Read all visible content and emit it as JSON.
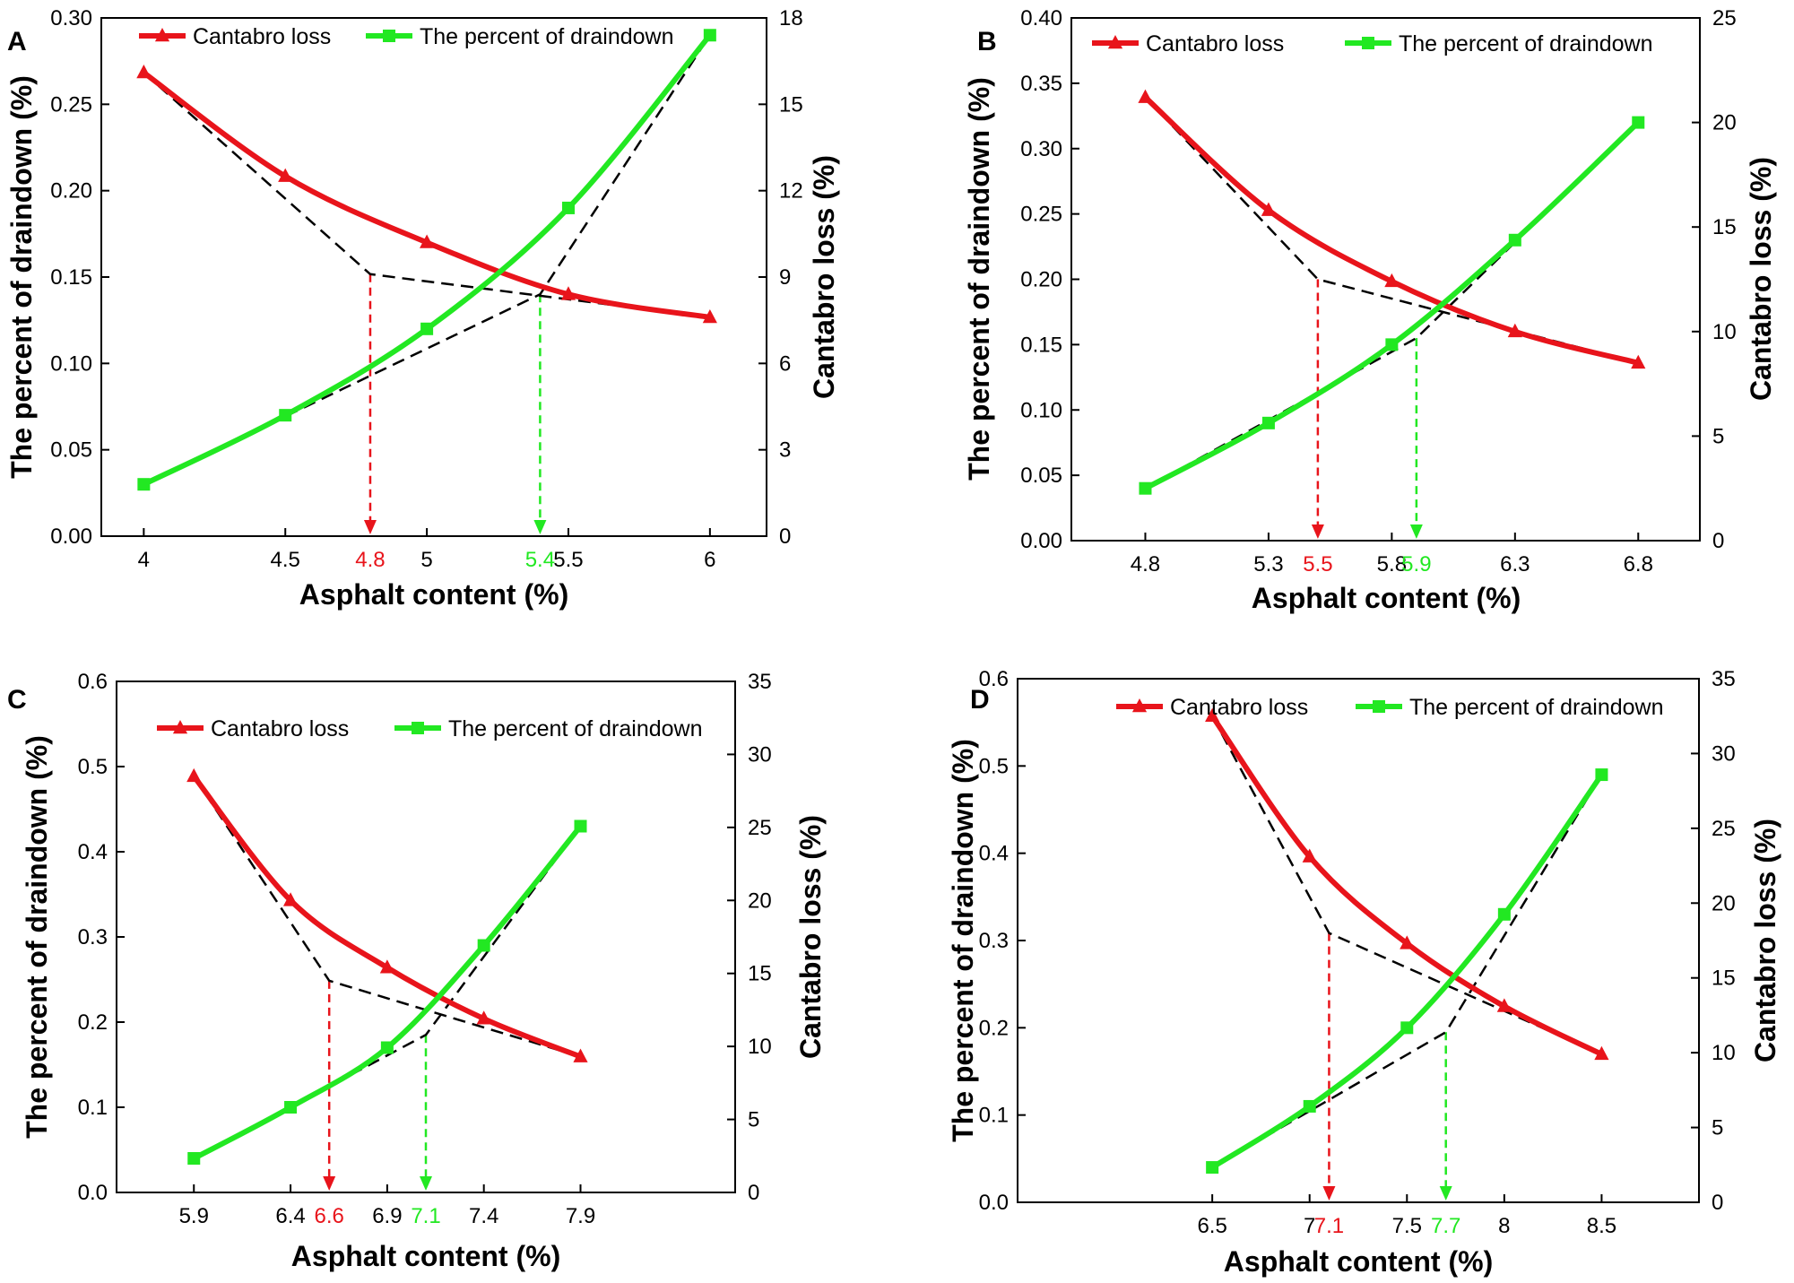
{
  "colors": {
    "cantabro": "#e8141b",
    "draindown": "#22e822",
    "fit": "#000000",
    "axis": "#000000"
  },
  "chart_data": [
    {
      "type": "line",
      "panel": "A",
      "xlabel": "Asphalt content (%)",
      "ylabel_left": "The percent of draindown (%)",
      "ylabel_right": "Cantabro loss (%)",
      "xlim": [
        3.85,
        6.2
      ],
      "ylim_left": [
        0,
        0.3
      ],
      "ylim_right": [
        0,
        18
      ],
      "xticks": [
        "4",
        "4.5",
        "5",
        "5.5",
        "6"
      ],
      "yticks_left": [
        "0.00",
        "0.05",
        "0.10",
        "0.15",
        "0.20",
        "0.25",
        "0.30"
      ],
      "yticks_right": [
        "0",
        "3",
        "6",
        "9",
        "12",
        "15",
        "18"
      ],
      "legend": [
        "Cantabro loss",
        "The percent of draindown"
      ],
      "series": [
        {
          "name": "Cantabro loss",
          "axis": "right",
          "x": [
            4,
            4.5,
            5,
            5.5,
            6
          ],
          "values": [
            16.1,
            12.5,
            10.2,
            8.4,
            7.6
          ]
        },
        {
          "name": "The percent of draindown",
          "axis": "left",
          "x": [
            4,
            4.5,
            5,
            5.5,
            6
          ],
          "values": [
            0.03,
            0.07,
            0.12,
            0.19,
            0.29
          ]
        }
      ],
      "fit_lines": [
        {
          "axis": "right",
          "x": [
            4,
            4.8,
            6
          ],
          "values": [
            16.1,
            9.1,
            7.6
          ]
        },
        {
          "axis": "left",
          "x": [
            4,
            5.4,
            6
          ],
          "values": [
            0.03,
            0.14,
            0.29
          ]
        }
      ],
      "optimum": [
        {
          "label": "4.8",
          "x": 4.8,
          "axis": "right",
          "y": 9.1,
          "color": "red"
        },
        {
          "label": "5.4",
          "x": 5.4,
          "axis": "left",
          "y": 0.14,
          "color": "green"
        }
      ]
    },
    {
      "type": "line",
      "panel": "B",
      "xlabel": "Asphalt content (%)",
      "ylabel_left": "The percent of draindown (%)",
      "ylabel_right": "Cantabro loss (%)",
      "xlim": [
        4.5,
        7.05
      ],
      "ylim_left": [
        0,
        0.4
      ],
      "ylim_right": [
        0,
        25
      ],
      "xticks": [
        "4.8",
        "5.3",
        "5.8",
        "6.3",
        "6.8"
      ],
      "yticks_left": [
        "0.00",
        "0.05",
        "0.10",
        "0.15",
        "0.20",
        "0.25",
        "0.30",
        "0.35",
        "0.40"
      ],
      "yticks_right": [
        "0",
        "5",
        "10",
        "15",
        "20",
        "25"
      ],
      "legend": [
        "Cantabro loss",
        "The percent of draindown"
      ],
      "series": [
        {
          "name": "Cantabro loss",
          "axis": "right",
          "x": [
            4.8,
            5.3,
            5.8,
            6.3,
            6.8
          ],
          "values": [
            21.2,
            15.8,
            12.4,
            10.0,
            8.5
          ]
        },
        {
          "name": "The percent of draindown",
          "axis": "left",
          "x": [
            4.8,
            5.3,
            5.8,
            6.3,
            6.8
          ],
          "values": [
            0.04,
            0.09,
            0.15,
            0.23,
            0.32
          ]
        }
      ],
      "fit_lines": [
        {
          "axis": "right",
          "x": [
            4.8,
            5.5,
            6.8
          ],
          "values": [
            21.2,
            12.5,
            8.5
          ]
        },
        {
          "axis": "left",
          "x": [
            4.8,
            5.9,
            6.8
          ],
          "values": [
            0.04,
            0.155,
            0.32
          ]
        }
      ],
      "optimum": [
        {
          "label": "5.5",
          "x": 5.5,
          "axis": "right",
          "y": 12.5,
          "color": "red"
        },
        {
          "label": "5.9",
          "x": 5.9,
          "axis": "left",
          "y": 0.155,
          "color": "green"
        }
      ]
    },
    {
      "type": "line",
      "panel": "C",
      "xlabel": "Asphalt content (%)",
      "ylabel_left": "The percent of draindown (%)",
      "ylabel_right": "Cantabro loss (%)",
      "xlim": [
        5.5,
        8.7
      ],
      "ylim_left": [
        0,
        0.6
      ],
      "ylim_right": [
        0,
        35
      ],
      "xticks": [
        "5.9",
        "6.4",
        "6.9",
        "7.4",
        "7.9"
      ],
      "yticks_left": [
        "0.0",
        "0.1",
        "0.2",
        "0.3",
        "0.4",
        "0.5",
        "0.6"
      ],
      "yticks_right": [
        "0",
        "5",
        "10",
        "15",
        "20",
        "25",
        "30",
        "35"
      ],
      "legend": [
        "Cantabro loss",
        "The percent of draindown"
      ],
      "series": [
        {
          "name": "Cantabro loss",
          "axis": "right",
          "x": [
            5.9,
            6.4,
            6.9,
            7.4,
            7.9
          ],
          "values": [
            28.5,
            20.0,
            15.4,
            11.9,
            9.3
          ]
        },
        {
          "name": "The percent of draindown",
          "axis": "left",
          "x": [
            5.9,
            6.4,
            6.9,
            7.4,
            7.9
          ],
          "values": [
            0.04,
            0.1,
            0.17,
            0.29,
            0.43
          ]
        }
      ],
      "fit_lines": [
        {
          "axis": "right",
          "x": [
            5.9,
            6.6,
            7.9
          ],
          "values": [
            28.5,
            14.5,
            9.3
          ]
        },
        {
          "axis": "left",
          "x": [
            5.9,
            7.1,
            7.9
          ],
          "values": [
            0.04,
            0.185,
            0.43
          ]
        }
      ],
      "optimum": [
        {
          "label": "6.6",
          "x": 6.6,
          "axis": "right",
          "y": 14.5,
          "color": "red"
        },
        {
          "label": "7.1",
          "x": 7.1,
          "axis": "left",
          "y": 0.185,
          "color": "green"
        }
      ]
    },
    {
      "type": "line",
      "panel": "D",
      "xlabel": "Asphalt content (%)",
      "ylabel_left": "The percent of draindown (%)",
      "ylabel_right": "Cantabro loss (%)",
      "xlim": [
        5.5,
        9.0
      ],
      "ylim_left": [
        0,
        0.6
      ],
      "ylim_right": [
        0,
        35
      ],
      "xticks": [
        "6.5",
        "7",
        "7.5",
        "8",
        "8.5"
      ],
      "yticks_left": [
        "0.0",
        "0.1",
        "0.2",
        "0.3",
        "0.4",
        "0.5",
        "0.6"
      ],
      "yticks_right": [
        "0",
        "5",
        "10",
        "15",
        "20",
        "25",
        "30",
        "35"
      ],
      "legend": [
        "Cantabro loss",
        "The percent of draindown"
      ],
      "series": [
        {
          "name": "Cantabro loss",
          "axis": "right",
          "x": [
            6.5,
            7,
            7.5,
            8,
            8.5
          ],
          "values": [
            32.5,
            23.1,
            17.3,
            13.1,
            9.9
          ]
        },
        {
          "name": "The percent of draindown",
          "axis": "left",
          "x": [
            6.5,
            7,
            7.5,
            8,
            8.5
          ],
          "values": [
            0.04,
            0.11,
            0.2,
            0.33,
            0.49
          ]
        }
      ],
      "fit_lines": [
        {
          "axis": "right",
          "x": [
            6.5,
            7.1,
            8.5
          ],
          "values": [
            32.5,
            18.0,
            9.9
          ]
        },
        {
          "axis": "left",
          "x": [
            6.5,
            7.7,
            8.5
          ],
          "values": [
            0.04,
            0.195,
            0.49
          ]
        }
      ],
      "optimum": [
        {
          "label": "7.1",
          "x": 7.1,
          "axis": "right",
          "y": 18.0,
          "color": "red"
        },
        {
          "label": "7.7",
          "x": 7.7,
          "axis": "left",
          "y": 0.195,
          "color": "green"
        }
      ]
    }
  ]
}
